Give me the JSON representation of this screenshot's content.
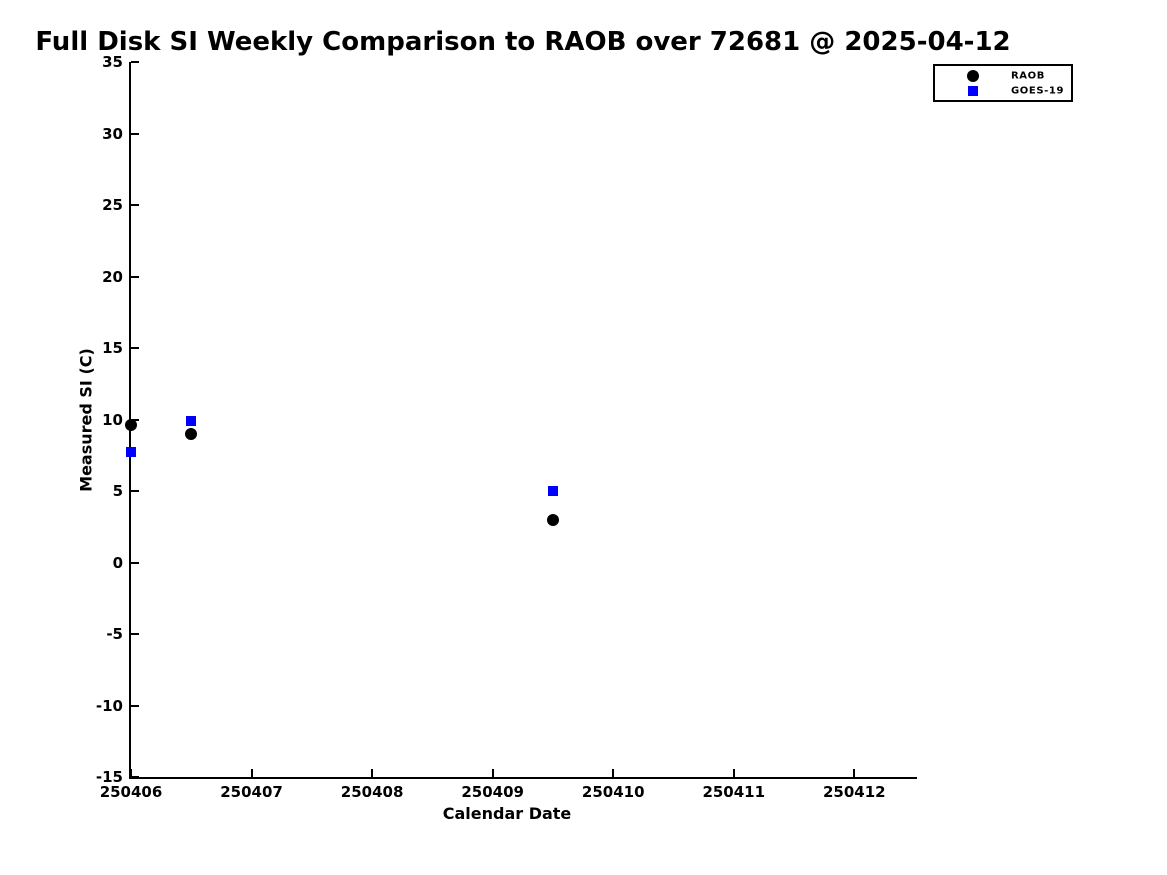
{
  "chart_data": {
    "type": "scatter",
    "title": "Full Disk SI Weekly Comparison to RAOB over 72681 @ 2025-04-12",
    "xlabel": "Calendar Date",
    "ylabel": "Measured SI (C)",
    "xlim": [
      250406,
      250412.52
    ],
    "ylim": [
      -15,
      35
    ],
    "xticks": [
      250406,
      250407,
      250408,
      250409,
      250410,
      250411,
      250412
    ],
    "xtick_labels": [
      "250406",
      "250407",
      "250408",
      "250409",
      "250410",
      "250411",
      "250412"
    ],
    "yticks": [
      35,
      30,
      25,
      20,
      15,
      10,
      5,
      0,
      -5,
      -10,
      -15
    ],
    "ytick_labels": [
      "35",
      "30",
      "25",
      "20",
      "15",
      "10",
      "5",
      "0",
      "-5",
      "-10",
      "-15"
    ],
    "grid": false,
    "legend_position": "top-right-outside",
    "background_color": "#ffffff",
    "axis_color": "#000000",
    "series": [
      {
        "name": "RAOB",
        "marker": "circle",
        "color": "#000000",
        "marker_size": 12,
        "legend_marker_size": 12,
        "points": [
          [
            250406.0,
            9.6
          ],
          [
            250406.5,
            9.0
          ],
          [
            250409.5,
            3.0
          ]
        ]
      },
      {
        "name": "GOES-19",
        "marker": "square",
        "color": "#0000ff",
        "marker_size": 10,
        "legend_marker_size": 10,
        "points": [
          [
            250406.0,
            7.7
          ],
          [
            250406.5,
            9.9
          ],
          [
            250409.5,
            5.0
          ]
        ]
      }
    ]
  }
}
